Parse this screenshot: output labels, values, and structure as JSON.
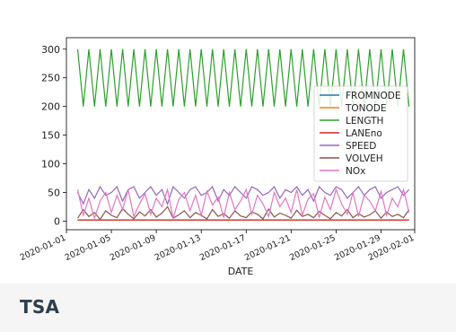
{
  "card": {
    "title": "TSA"
  },
  "chart_data": {
    "type": "line",
    "xlabel": "DATE",
    "ylabel": "",
    "xlim": [
      "2020-01-01",
      "2020-02-01"
    ],
    "ylim": [
      -15,
      320
    ],
    "yticks": [
      0,
      50,
      100,
      150,
      200,
      250,
      300
    ],
    "xtick_labels": [
      "2020-01-01",
      "2020-01-05",
      "2020-01-09",
      "2020-01-13",
      "2020-01-17",
      "2020-01-21",
      "2020-01-25",
      "2020-01-29",
      "2020-02-01"
    ],
    "x": [
      "2020-01-02",
      "2020-01-02",
      "2020-01-03",
      "2020-01-03",
      "2020-01-04",
      "2020-01-04",
      "2020-01-05",
      "2020-01-05",
      "2020-01-06",
      "2020-01-06",
      "2020-01-07",
      "2020-01-07",
      "2020-01-08",
      "2020-01-08",
      "2020-01-09",
      "2020-01-09",
      "2020-01-10",
      "2020-01-10",
      "2020-01-11",
      "2020-01-11",
      "2020-01-12",
      "2020-01-12",
      "2020-01-13",
      "2020-01-13",
      "2020-01-14",
      "2020-01-14",
      "2020-01-15",
      "2020-01-15",
      "2020-01-16",
      "2020-01-16",
      "2020-01-17",
      "2020-01-17",
      "2020-01-18",
      "2020-01-18",
      "2020-01-19",
      "2020-01-19",
      "2020-01-20",
      "2020-01-20",
      "2020-01-21",
      "2020-01-21",
      "2020-01-22",
      "2020-01-22",
      "2020-01-23",
      "2020-01-23",
      "2020-01-24",
      "2020-01-24",
      "2020-01-25",
      "2020-01-25",
      "2020-01-26",
      "2020-01-26",
      "2020-01-27",
      "2020-01-27",
      "2020-01-28",
      "2020-01-28",
      "2020-01-29",
      "2020-01-29",
      "2020-01-30",
      "2020-01-30",
      "2020-01-31",
      "2020-01-31"
    ],
    "series": [
      {
        "name": "FROMNODE",
        "color": "#1f77b4",
        "values": [
          2,
          2,
          2,
          2,
          2,
          2,
          2,
          2,
          2,
          2,
          2,
          2,
          2,
          2,
          2,
          2,
          2,
          2,
          2,
          2,
          2,
          2,
          2,
          2,
          2,
          2,
          2,
          2,
          2,
          2,
          2,
          2,
          2,
          2,
          2,
          2,
          2,
          2,
          2,
          2,
          2,
          2,
          2,
          2,
          2,
          2,
          2,
          2,
          2,
          2,
          2,
          2,
          2,
          2,
          2,
          2,
          2,
          2,
          2,
          2
        ]
      },
      {
        "name": "TONODE",
        "color": "#ff7f0e",
        "values": [
          2,
          2,
          2,
          2,
          2,
          2,
          2,
          2,
          2,
          2,
          2,
          2,
          2,
          2,
          2,
          2,
          2,
          2,
          2,
          2,
          2,
          2,
          2,
          2,
          2,
          2,
          2,
          2,
          2,
          2,
          2,
          2,
          2,
          2,
          2,
          2,
          2,
          2,
          2,
          2,
          2,
          2,
          2,
          2,
          2,
          2,
          2,
          2,
          2,
          2,
          2,
          2,
          2,
          2,
          2,
          2,
          2,
          2,
          2,
          2
        ]
      },
      {
        "name": "LENGTH",
        "color": "#2ca02c",
        "values": [
          300,
          200,
          300,
          200,
          300,
          200,
          300,
          200,
          300,
          200,
          300,
          200,
          300,
          200,
          300,
          200,
          300,
          200,
          300,
          200,
          300,
          200,
          300,
          200,
          300,
          200,
          300,
          200,
          300,
          200,
          300,
          200,
          300,
          200,
          300,
          200,
          300,
          200,
          300,
          200,
          300,
          200,
          300,
          200,
          300,
          200,
          300,
          200,
          300,
          200,
          300,
          200,
          300,
          200,
          300,
          200,
          300,
          200,
          300,
          200
        ]
      },
      {
        "name": "LANEno",
        "color": "#d62728",
        "values": [
          2,
          2,
          2,
          2,
          2,
          2,
          2,
          2,
          2,
          2,
          2,
          2,
          2,
          2,
          2,
          2,
          2,
          2,
          2,
          2,
          2,
          2,
          2,
          2,
          2,
          2,
          2,
          2,
          2,
          2,
          2,
          2,
          2,
          2,
          2,
          2,
          2,
          2,
          2,
          2,
          2,
          2,
          2,
          2,
          2,
          2,
          2,
          2,
          2,
          2,
          2,
          2,
          2,
          2,
          2,
          2,
          2,
          2,
          2,
          2
        ]
      },
      {
        "name": "SPEED",
        "color": "#9467bd",
        "values": [
          50,
          30,
          55,
          40,
          60,
          45,
          50,
          60,
          35,
          55,
          60,
          40,
          50,
          60,
          45,
          55,
          30,
          60,
          50,
          40,
          55,
          60,
          45,
          50,
          60,
          35,
          55,
          45,
          60,
          50,
          40,
          60,
          55,
          45,
          50,
          60,
          40,
          55,
          50,
          60,
          45,
          55,
          35,
          60,
          50,
          45,
          60,
          55,
          40,
          50,
          60,
          45,
          55,
          60,
          40,
          50,
          55,
          60,
          45,
          55
        ]
      },
      {
        "name": "VOLVEH",
        "color": "#8c564b",
        "values": [
          5,
          20,
          8,
          15,
          3,
          18,
          10,
          6,
          22,
          12,
          4,
          16,
          9,
          20,
          7,
          14,
          25,
          5,
          11,
          18,
          6,
          15,
          10,
          4,
          20,
          8,
          13,
          5,
          18,
          9,
          6,
          16,
          12,
          4,
          21,
          7,
          14,
          10,
          5,
          19,
          8,
          12,
          6,
          17,
          10,
          4,
          15,
          9,
          20,
          6,
          13,
          7,
          11,
          18,
          5,
          16,
          8,
          12,
          6,
          20
        ]
      },
      {
        "name": "NOx",
        "color": "#e377c2",
        "values": [
          55,
          10,
          40,
          5,
          35,
          50,
          15,
          45,
          20,
          55,
          8,
          30,
          48,
          12,
          40,
          25,
          55,
          5,
          38,
          50,
          18,
          45,
          10,
          52,
          28,
          42,
          6,
          50,
          20,
          35,
          55,
          12,
          45,
          30,
          8,
          50,
          25,
          40,
          15,
          55,
          10,
          38,
          48,
          6,
          42,
          20,
          55,
          30,
          12,
          50,
          8,
          45,
          35,
          18,
          52,
          10,
          40,
          25,
          55,
          15
        ]
      }
    ],
    "legend_position": "center-right",
    "grid": false
  }
}
